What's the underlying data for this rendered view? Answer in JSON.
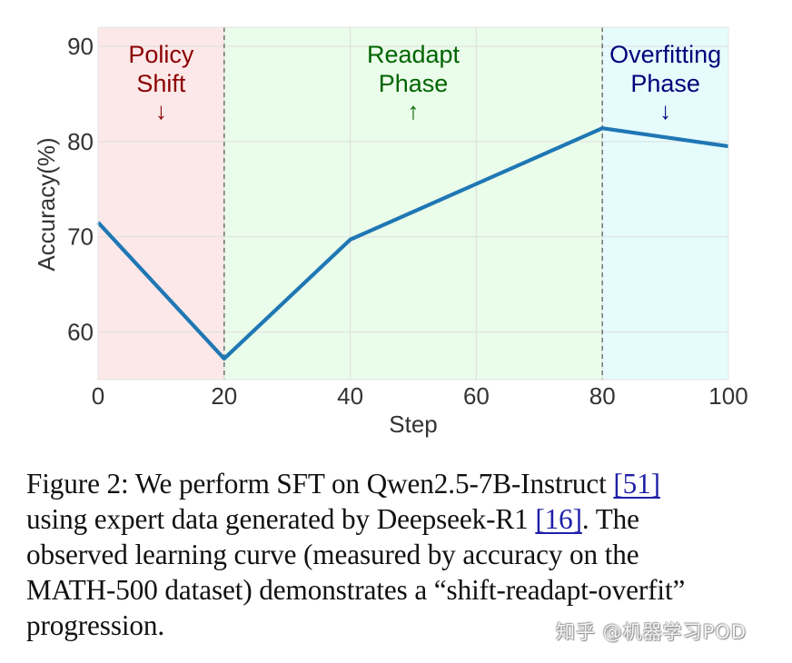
{
  "chart_data": {
    "type": "line",
    "title": "",
    "xlabel": "Step",
    "ylabel": "Accuracy(%)",
    "xlim": [
      0,
      100
    ],
    "ylim": [
      55,
      92
    ],
    "x_ticks": [
      0,
      20,
      40,
      60,
      80,
      100
    ],
    "y_ticks": [
      60,
      70,
      80,
      90
    ],
    "grid": true,
    "series": [
      {
        "name": "Accuracy",
        "color": "#1f77b4",
        "x": [
          0,
          20,
          40,
          80,
          100
        ],
        "y": [
          71.5,
          57.2,
          69.7,
          81.4,
          79.5
        ]
      }
    ],
    "phases": [
      {
        "label_lines": [
          "Policy",
          "Shift"
        ],
        "arrow": "↓",
        "x_range": [
          0,
          20
        ],
        "fill": "#fce8e8",
        "text_color": "#8b0000"
      },
      {
        "label_lines": [
          "Readapt",
          "Phase"
        ],
        "arrow": "↑",
        "x_range": [
          20,
          80
        ],
        "fill": "#eafcea",
        "text_color": "#006400"
      },
      {
        "label_lines": [
          "Overfitting",
          "Phase"
        ],
        "arrow": "↓",
        "x_range": [
          80,
          100
        ],
        "fill": "#e6fcfc",
        "text_color": "#00007a"
      }
    ],
    "phase_boundaries": [
      20,
      80
    ]
  },
  "caption": {
    "line1_a": "Figure 2: We perform SFT on Qwen2.5-7B-Instruct ",
    "line1_cite": "[51]",
    "line2_a": "using expert data generated by Deepseek-R1 ",
    "line2_cite": "[16]",
    "line2_b": ". The",
    "line3": "observed learning curve (measured by accuracy on the",
    "line4": "MATH-500 dataset) demonstrates a “shift-readapt-overfit”",
    "line5": "progression."
  },
  "watermark": "知乎 @机器学习POD"
}
